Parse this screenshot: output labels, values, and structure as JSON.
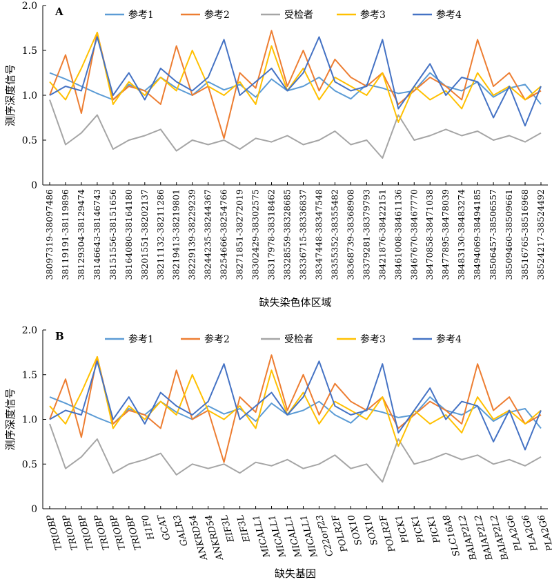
{
  "chart_data": [
    {
      "type": "line",
      "panel": "A",
      "xlabel": "缺失染色体区域",
      "ylabel": "测序深度信号",
      "ylim": [
        0,
        2.0
      ],
      "yticks": [
        "0",
        "0.5",
        "1.0",
        "1.5",
        "2.0"
      ],
      "legend_position": "top",
      "legend": [
        "参考1",
        "参考2",
        "受检者",
        "参考3",
        "参考4"
      ],
      "categories": [
        "38097319-38097486",
        "38119191-38119896",
        "38129304-38129474",
        "38146643-38146743",
        "38151556-38151656",
        "38164080-38164180",
        "38201551-38202137",
        "38211132-38211286",
        "38219413-38219801",
        "38229139-38229239",
        "38244235-38244367",
        "38254666-38254766",
        "38271851-38272019",
        "38302429-38302575",
        "38317978-38318462",
        "38328559-38328685",
        "38336715-38336837",
        "38347448-38347548",
        "38355352-38355482",
        "38368739-38368908",
        "38379281-38379793",
        "38421876-38422151",
        "38461008-38461136",
        "38467670-38467770",
        "38470858-38471038",
        "38477895-38478039",
        "38483130-38483274",
        "38494069-38494185",
        "38506457-38506557",
        "38509460-38509661",
        "38516765-38516968",
        "38524217-38524492"
      ],
      "series": [
        {
          "name": "参考1",
          "color": "#5b9bd5",
          "values": [
            1.25,
            1.18,
            1.1,
            1.02,
            0.95,
            1.12,
            1.05,
            1.2,
            1.08,
            1.0,
            1.15,
            1.06,
            1.12,
            0.98,
            1.18,
            1.05,
            1.1,
            1.2,
            1.05,
            0.96,
            1.12,
            1.08,
            1.02,
            1.05,
            1.25,
            1.1,
            1.05,
            1.15,
            0.98,
            1.08,
            1.12,
            0.9
          ]
        },
        {
          "name": "参考2",
          "color": "#ed7d31",
          "values": [
            1.0,
            1.45,
            0.8,
            1.7,
            0.95,
            1.1,
            1.05,
            0.9,
            1.55,
            1.0,
            1.1,
            0.52,
            1.25,
            1.08,
            1.72,
            1.1,
            1.5,
            1.05,
            1.4,
            1.2,
            1.1,
            1.25,
            0.9,
            1.05,
            1.2,
            1.1,
            0.95,
            1.62,
            1.1,
            1.25,
            0.95,
            1.05
          ]
        },
        {
          "name": "受检者",
          "color": "#a5a5a5",
          "values": [
            0.95,
            0.45,
            0.58,
            0.78,
            0.4,
            0.5,
            0.55,
            0.62,
            0.38,
            0.5,
            0.45,
            0.5,
            0.4,
            0.52,
            0.48,
            0.55,
            0.45,
            0.5,
            0.6,
            0.45,
            0.5,
            0.3,
            0.78,
            0.5,
            0.55,
            0.62,
            0.55,
            0.6,
            0.5,
            0.55,
            0.48,
            0.58
          ]
        },
        {
          "name": "参考3",
          "color": "#ffc000",
          "values": [
            1.15,
            0.95,
            1.3,
            1.7,
            0.9,
            1.15,
            1.0,
            1.2,
            1.05,
            1.5,
            1.1,
            1.0,
            1.15,
            0.9,
            1.55,
            1.05,
            1.3,
            0.95,
            1.2,
            1.1,
            1.0,
            1.25,
            0.7,
            1.1,
            0.95,
            1.05,
            0.85,
            1.25,
            1.0,
            1.1,
            0.95,
            1.1
          ]
        },
        {
          "name": "参考4",
          "color": "#4472c4",
          "values": [
            1.0,
            1.1,
            1.05,
            1.65,
            1.0,
            1.25,
            0.95,
            1.3,
            1.15,
            1.05,
            1.2,
            1.62,
            1.0,
            1.15,
            1.3,
            1.05,
            1.25,
            1.65,
            1.15,
            1.05,
            1.1,
            1.62,
            0.85,
            1.1,
            1.35,
            1.0,
            1.2,
            1.15,
            0.75,
            1.1,
            0.66,
            1.1
          ]
        }
      ]
    },
    {
      "type": "line",
      "panel": "B",
      "xlabel": "缺失基因",
      "ylabel": "测序深度信号",
      "ylim": [
        0,
        2.0
      ],
      "yticks": [
        "0",
        "0.5",
        "1.0",
        "1.5",
        "2.0"
      ],
      "legend_position": "top",
      "legend": [
        "参考1",
        "参考2",
        "受检者",
        "参考3",
        "参考4"
      ],
      "categories": [
        "TRIOBP",
        "TRIOBP",
        "TRIOBP",
        "TRIOBP",
        "TRIOBP",
        "TRIOBP",
        "H1F0",
        "GCAT",
        "GALR3",
        "ANKRD54",
        "ANKRD54",
        "EIF3L",
        "EIF3L",
        "MICALL1",
        "MICALL1",
        "MICALL1",
        "MICALL1",
        "C22orf23",
        "POLR2F",
        "SOX10",
        "SOX10",
        "POLR2F",
        "PICK1",
        "PICK1",
        "PICK1",
        "SLC16A8",
        "BAIAP2L2",
        "BAIAP2L2",
        "BAIAP2L2",
        "PLA2G6",
        "PLA2G6",
        "PLA2G6"
      ],
      "series": [
        {
          "name": "参考1",
          "color": "#5b9bd5",
          "values": [
            1.25,
            1.18,
            1.1,
            1.02,
            0.95,
            1.12,
            1.05,
            1.2,
            1.08,
            1.0,
            1.15,
            1.06,
            1.12,
            0.98,
            1.18,
            1.05,
            1.1,
            1.2,
            1.05,
            0.96,
            1.12,
            1.08,
            1.02,
            1.05,
            1.25,
            1.1,
            1.05,
            1.15,
            0.98,
            1.08,
            1.12,
            0.9
          ]
        },
        {
          "name": "参考2",
          "color": "#ed7d31",
          "values": [
            1.0,
            1.45,
            0.8,
            1.7,
            0.95,
            1.1,
            1.05,
            0.9,
            1.55,
            1.0,
            1.1,
            0.52,
            1.25,
            1.08,
            1.72,
            1.1,
            1.5,
            1.05,
            1.4,
            1.2,
            1.1,
            1.25,
            0.9,
            1.05,
            1.2,
            1.1,
            0.95,
            1.62,
            1.1,
            1.25,
            0.95,
            1.05
          ]
        },
        {
          "name": "受检者",
          "color": "#a5a5a5",
          "values": [
            0.95,
            0.45,
            0.58,
            0.78,
            0.4,
            0.5,
            0.55,
            0.62,
            0.38,
            0.5,
            0.45,
            0.5,
            0.4,
            0.52,
            0.48,
            0.55,
            0.45,
            0.5,
            0.6,
            0.45,
            0.5,
            0.3,
            0.78,
            0.5,
            0.55,
            0.62,
            0.55,
            0.6,
            0.5,
            0.55,
            0.48,
            0.58
          ]
        },
        {
          "name": "参考3",
          "color": "#ffc000",
          "values": [
            1.15,
            0.95,
            1.3,
            1.7,
            0.9,
            1.15,
            1.0,
            1.2,
            1.05,
            1.5,
            1.1,
            1.0,
            1.15,
            0.9,
            1.55,
            1.05,
            1.3,
            0.95,
            1.2,
            1.1,
            1.0,
            1.25,
            0.7,
            1.1,
            0.95,
            1.05,
            0.85,
            1.25,
            1.0,
            1.1,
            0.95,
            1.1
          ]
        },
        {
          "name": "参考4",
          "color": "#4472c4",
          "values": [
            1.0,
            1.1,
            1.05,
            1.65,
            1.0,
            1.25,
            0.95,
            1.3,
            1.15,
            1.05,
            1.2,
            1.62,
            1.0,
            1.15,
            1.3,
            1.05,
            1.25,
            1.65,
            1.15,
            1.05,
            1.1,
            1.62,
            0.85,
            1.1,
            1.35,
            1.0,
            1.2,
            1.15,
            0.75,
            1.1,
            0.66,
            1.1
          ]
        }
      ]
    }
  ]
}
